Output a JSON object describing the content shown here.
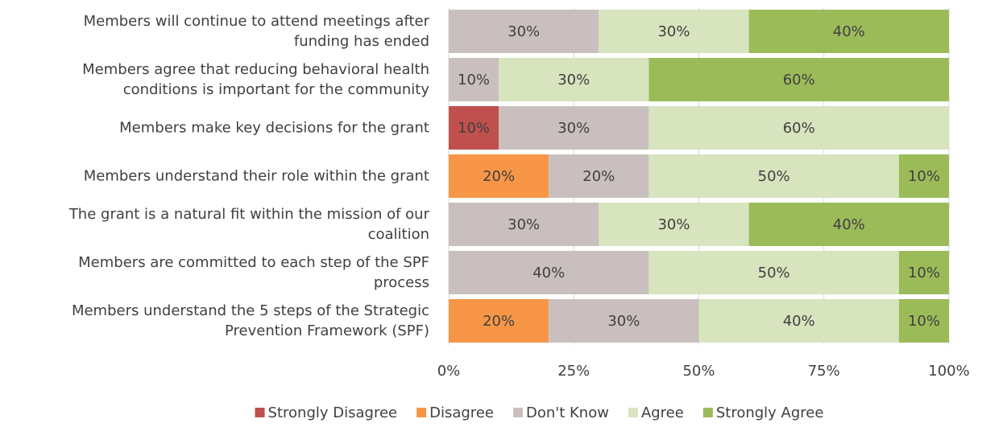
{
  "chart_data": {
    "type": "stacked-barh",
    "categories": [
      "Members will continue to attend meetings after\nfunding has ended",
      "Members agree that reducing behavioral health\nconditions is important for the community",
      "Members make key decisions for the grant",
      "Members understand their role within the grant",
      "The grant is a natural fit within the mission of our\ncoalition",
      "Members are committed to each step of the SPF\nprocess",
      "Members understand the 5 steps of the Strategic\nPrevention Framework (SPF)"
    ],
    "series": [
      {
        "name": "Strongly Disagree",
        "color": "#c0504d",
        "values": [
          0,
          0,
          10,
          0,
          0,
          0,
          0
        ],
        "value_labels": [
          null,
          null,
          "10%",
          null,
          null,
          null,
          null
        ]
      },
      {
        "name": "Disagree",
        "color": "#f79646",
        "values": [
          0,
          0,
          0,
          20,
          0,
          0,
          20
        ],
        "value_labels": [
          null,
          null,
          null,
          "20%",
          null,
          null,
          "20%"
        ]
      },
      {
        "name": "Don't Know",
        "color": "#c9bfbe",
        "values": [
          30,
          10,
          30,
          20,
          30,
          40,
          30
        ],
        "value_labels": [
          "30%",
          "10%",
          "30%",
          "20%",
          "30%",
          "40%",
          "30%"
        ]
      },
      {
        "name": "Agree",
        "color": "#d7e4bd",
        "values": [
          30,
          30,
          60,
          50,
          30,
          50,
          40
        ],
        "value_labels": [
          "30%",
          "30%",
          "60%",
          "50%",
          "30%",
          "50%",
          "40%"
        ]
      },
      {
        "name": "Strongly Agree",
        "color": "#9bbb59",
        "values": [
          40,
          60,
          0,
          10,
          40,
          10,
          10
        ],
        "value_labels": [
          "40%",
          "60%",
          null,
          "10%",
          "40%",
          "10%",
          "10%"
        ]
      }
    ],
    "xlim": [
      0,
      100
    ],
    "xticks": [
      {
        "value": 0,
        "label": "0%"
      },
      {
        "value": 25,
        "label": "25%"
      },
      {
        "value": 50,
        "label": "50%"
      },
      {
        "value": 75,
        "label": "75%"
      },
      {
        "value": 100,
        "label": "100%"
      }
    ],
    "grid": true,
    "legend": "bottom"
  }
}
